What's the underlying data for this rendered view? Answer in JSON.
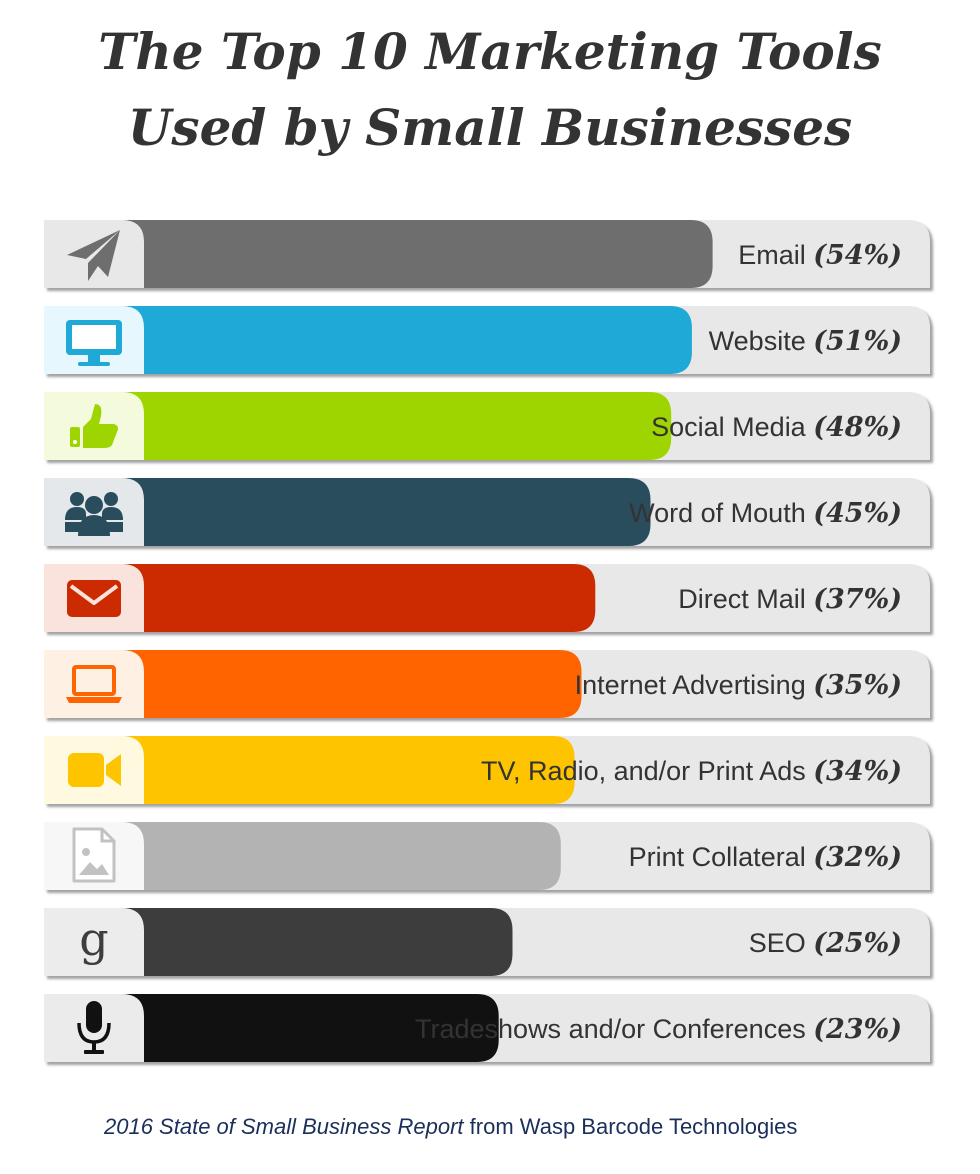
{
  "title": {
    "line1": "The Top 10 Marketing Tools",
    "line2": "Used by Small Businesses"
  },
  "chart_data": {
    "type": "bar",
    "orientation": "horizontal",
    "categories": [
      "Email",
      "Website",
      "Social Media",
      "Word of Mouth",
      "Direct Mail",
      "Internet Advertising",
      "TV, Radio, and/or Print Ads",
      "Print Collateral",
      "SEO",
      "Tradeshows and/or Conferences"
    ],
    "values": [
      54,
      51,
      48,
      45,
      37,
      35,
      34,
      32,
      25,
      23
    ],
    "value_labels": [
      "(54%)",
      "(51%)",
      "(48%)",
      "(45%)",
      "(37%)",
      "(35%)",
      "(34%)",
      "(32%)",
      "(25%)",
      "(23%)"
    ],
    "unit": "%",
    "colors": [
      "#6e6e6e",
      "#1fa9d6",
      "#9ed500",
      "#2a4d5e",
      "#cc2a00",
      "#ff6400",
      "#ffc400",
      "#b3b3b3",
      "#3d3d3d",
      "#111111"
    ],
    "icon_backgrounds": [
      "#e8e8e8",
      "#e6f7fd",
      "#f3fbdc",
      "#e4e8ea",
      "#fbe3dd",
      "#fff0e4",
      "#fff9e0",
      "#f7f7f7",
      "#ececec",
      "#ebebeb"
    ],
    "icons": [
      "paper-plane-icon",
      "monitor-icon",
      "thumbs-up-icon",
      "group-icon",
      "envelope-icon",
      "laptop-icon",
      "video-camera-icon",
      "image-file-icon",
      "google-g-icon",
      "microphone-icon"
    ],
    "track_color": "#e8e8e8",
    "xlim": [
      0,
      100
    ]
  },
  "source": {
    "italic": "2016 State of Small Business Report",
    "rest": " from Wasp Barcode Technologies"
  }
}
